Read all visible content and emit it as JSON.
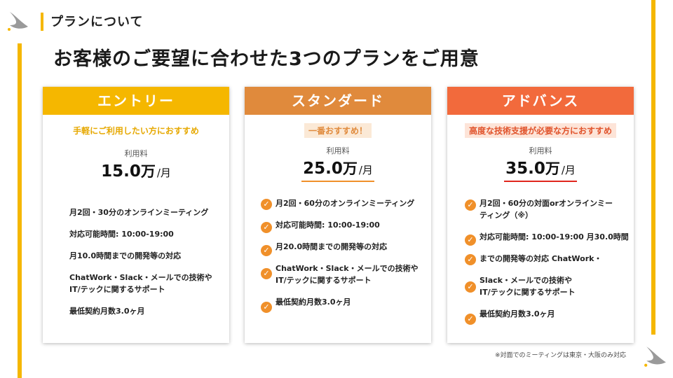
{
  "header": {
    "title": "プランについて"
  },
  "main_title": "お客様のご要望に合わせた3つのプランをご用意",
  "colors": {
    "accent_yellow": "#f5b700",
    "standard_orange": "#e08a3c",
    "advanced_red": "#f26a3c",
    "check_orange": "#f0902a"
  },
  "plans": [
    {
      "name": "エントリー",
      "tagline": "手軽にご利用したい方におすすめ",
      "price_label": "利用料",
      "price_value": "15.0",
      "price_unit": "万",
      "price_per": "/月",
      "features": [
        "月2回・30分のオンラインミーティング",
        "対応可能時間: 10:00-19:00",
        "月10.0時間までの開発等の対応",
        "ChatWork・Slack・メールでの技術や\nIT/テックに関するサポート",
        "最低契約月数3.0ヶ月"
      ]
    },
    {
      "name": "スタンダード",
      "tagline": "一番おすすめ！",
      "price_label": "利用料",
      "price_value": "25.0",
      "price_unit": "万",
      "price_per": "/月",
      "features": [
        "月2回・60分のオンラインミーティング",
        "対応可能時間: 10:00-19:00",
        "月20.0時間までの開発等の対応",
        "ChatWork・Slack・メールでの技術や\nIT/テックに関するサポート",
        "最低契約月数3.0ヶ月"
      ]
    },
    {
      "name": "アドバンス",
      "tagline": "高度な技術支援が必要な方におすすめ",
      "price_label": "利用料",
      "price_value": "35.0",
      "price_unit": "万",
      "price_per": "/月",
      "features": [
        "月2回・60分の対面orオンラインミー\nティング（※）",
        "対応可能時間: 10:00-19:00 月30.0時間",
        "までの開発等の対応 ChatWork・",
        "Slack・メールでの技術や\nIT/テックに関するサポート",
        "最低契約月数3.0ヶ月"
      ]
    }
  ],
  "footnote": "※対面でのミーティングは東京・大阪のみ対応"
}
